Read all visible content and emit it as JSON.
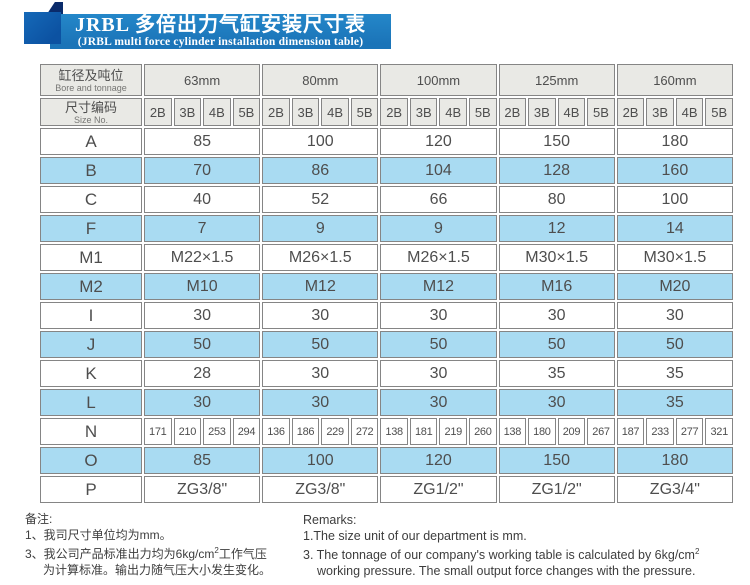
{
  "banner": {
    "title_zh": "JRBL 多倍出力气缸安装尺寸表",
    "title_en": "(JRBL multi force cylinder installation dimension table)"
  },
  "colors": {
    "banner_blue": "#1b74b8",
    "tab_blue": "#0c52a2",
    "fold_navy": "#0a2b6b",
    "header_bg": "#e9e9e5",
    "highlight_bg": "#a9dbf2",
    "cell_border": "#858585",
    "text_gray": "#4e4e4e"
  },
  "table": {
    "header": {
      "row1_label_zh": "缸径及吨位",
      "row1_label_en": "Bore and tonnage",
      "row2_label_zh": "尺寸编码",
      "row2_label_en": "Size No.",
      "groups": [
        "63mm",
        "80mm",
        "100mm",
        "125mm",
        "160mm"
      ],
      "sizes": [
        "2B",
        "3B",
        "4B",
        "5B"
      ]
    },
    "rows": [
      {
        "label": "A",
        "type": "merged",
        "highlight": false,
        "values": [
          "85",
          "100",
          "120",
          "150",
          "180"
        ]
      },
      {
        "label": "B",
        "type": "merged",
        "highlight": true,
        "values": [
          "70",
          "86",
          "104",
          "128",
          "160"
        ]
      },
      {
        "label": "C",
        "type": "merged",
        "highlight": false,
        "values": [
          "40",
          "52",
          "66",
          "80",
          "100"
        ]
      },
      {
        "label": "F",
        "type": "merged",
        "highlight": true,
        "values": [
          "7",
          "9",
          "9",
          "12",
          "14"
        ]
      },
      {
        "label": "M1",
        "type": "merged",
        "highlight": false,
        "values": [
          "M22×1.5",
          "M26×1.5",
          "M26×1.5",
          "M30×1.5",
          "M30×1.5"
        ]
      },
      {
        "label": "M2",
        "type": "merged",
        "highlight": true,
        "values": [
          "M10",
          "M12",
          "M12",
          "M16",
          "M20"
        ]
      },
      {
        "label": "I",
        "type": "merged",
        "highlight": false,
        "values": [
          "30",
          "30",
          "30",
          "30",
          "30"
        ]
      },
      {
        "label": "J",
        "type": "merged",
        "highlight": true,
        "values": [
          "50",
          "50",
          "50",
          "50",
          "50"
        ]
      },
      {
        "label": "K",
        "type": "merged",
        "highlight": false,
        "values": [
          "28",
          "30",
          "30",
          "35",
          "35"
        ]
      },
      {
        "label": "L",
        "type": "merged",
        "highlight": true,
        "values": [
          "30",
          "30",
          "30",
          "30",
          "35"
        ]
      },
      {
        "label": "N",
        "type": "per-size",
        "highlight": false,
        "values": [
          "171",
          "210",
          "253",
          "294",
          "136",
          "186",
          "229",
          "272",
          "138",
          "181",
          "219",
          "260",
          "138",
          "180",
          "209",
          "267",
          "187",
          "233",
          "277",
          "321"
        ]
      },
      {
        "label": "O",
        "type": "merged",
        "highlight": true,
        "values": [
          "85",
          "100",
          "120",
          "150",
          "180"
        ]
      },
      {
        "label": "P",
        "type": "merged",
        "highlight": false,
        "values": [
          "ZG3/8\"",
          "ZG3/8\"",
          "ZG1/2\"",
          "ZG1/2\"",
          "ZG3/4\""
        ]
      }
    ]
  },
  "notes": {
    "zh": {
      "heading": "备注:",
      "line1": "1、我司尺寸单位均为mm。",
      "line3_pre": "3、我公司产品标准出力均为6kg/cm",
      "line3_sup": "2",
      "line3_post": "工作气压",
      "line4": "为计算标准。输出力随气压大小发生变化。"
    },
    "en": {
      "heading": "Remarks:",
      "line1": "1.The size unit of our department is mm.",
      "line3_pre": "3. The tonnage of our company's working table is calculated by 6kg/cm",
      "line3_sup": "2",
      "line4": "working pressure. The small output force changes with the pressure."
    }
  }
}
